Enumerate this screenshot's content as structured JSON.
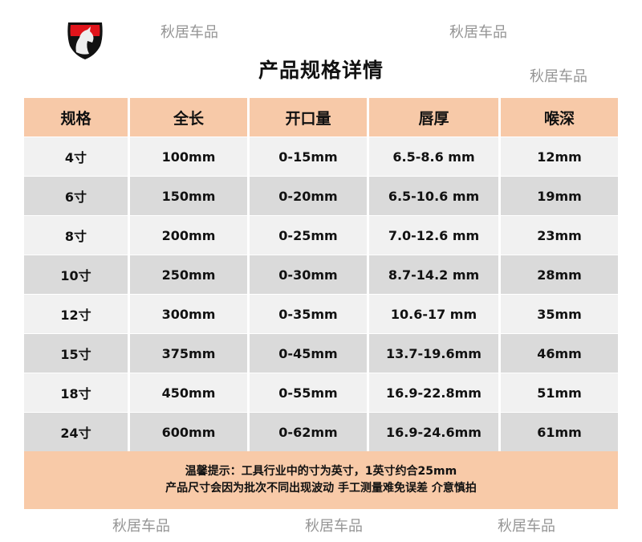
{
  "title": "产品规格详情",
  "table": {
    "headers": [
      "规格",
      "全长",
      "开口量",
      "唇厚",
      "喉深"
    ],
    "rows": [
      [
        "4寸",
        "100mm",
        "0-15mm",
        "6.5-8.6  mm",
        "12mm"
      ],
      [
        "6寸",
        "150mm",
        "0-20mm",
        "6.5-10.6 mm",
        "19mm"
      ],
      [
        "8寸",
        "200mm",
        "0-25mm",
        "7.0-12.6 mm",
        "23mm"
      ],
      [
        "10寸",
        "250mm",
        "0-30mm",
        "8.7-14.2 mm",
        "28mm"
      ],
      [
        "12寸",
        "300mm",
        "0-35mm",
        "10.6-17  mm",
        "35mm"
      ],
      [
        "15寸",
        "375mm",
        "0-45mm",
        "13.7-19.6mm",
        "46mm"
      ],
      [
        "18寸",
        "450mm",
        "0-55mm",
        "16.9-22.8mm",
        "51mm"
      ],
      [
        "24寸",
        "600mm",
        "0-62mm",
        "16.9-24.6mm",
        "61mm"
      ]
    ]
  },
  "footer": {
    "line1": "温馨提示：工具行业中的寸为英寸，1英寸约合25mm",
    "line2": "产品尺寸会因为批次不同出现波动  手工测量难免误差  介意慎拍"
  },
  "watermark": "秋居车品",
  "logo_icon": "horse-shield-logo",
  "colors": {
    "header": "#f7c9a8",
    "row_light": "#f1f1f1",
    "row_dark": "#dadada",
    "logo_red": "#e0141b"
  }
}
